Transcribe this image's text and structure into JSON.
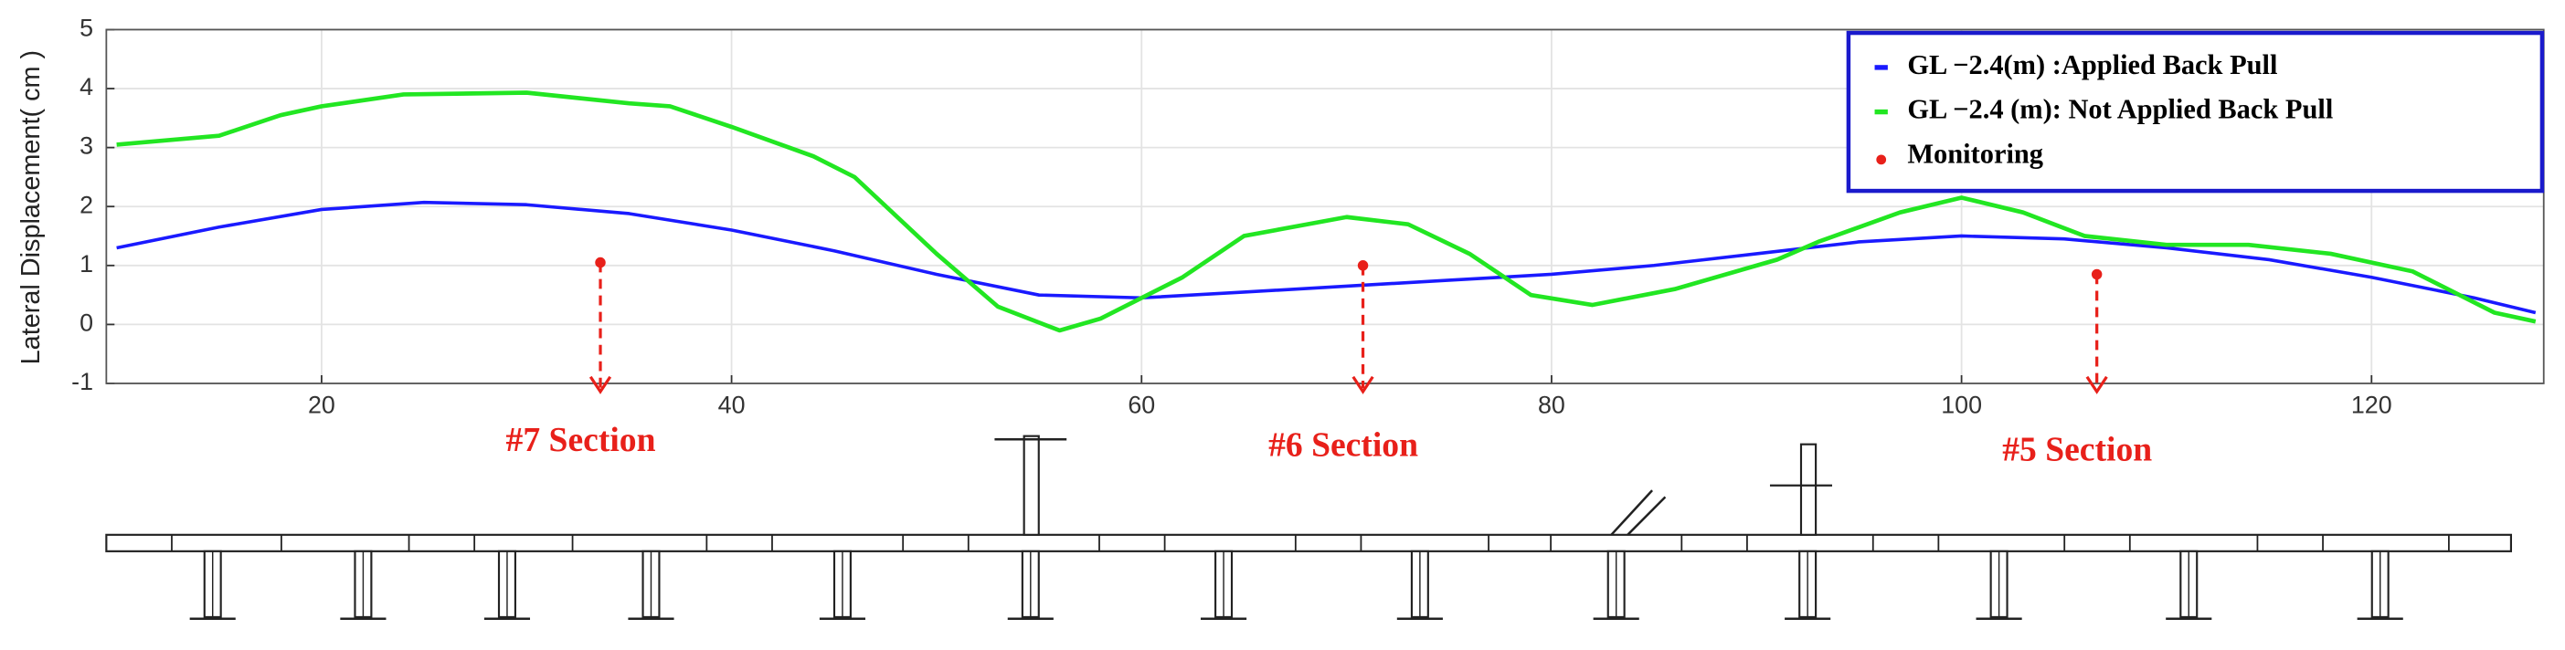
{
  "chart_data": {
    "type": "line",
    "ylabel": "Lateral Displacement( cm )",
    "xlim": [
      9.5,
      128.4
    ],
    "ylim": [
      -1,
      5
    ],
    "xticks": [
      20,
      40,
      60,
      80,
      100,
      120
    ],
    "yticks": [
      -1,
      0,
      1,
      2,
      3,
      4,
      5
    ],
    "grid": true,
    "legend": "upper right",
    "series": [
      {
        "name": "GL −2.4(m) :Applied Back Pull",
        "color": "#1a1aff",
        "x": [
          10,
          15,
          20,
          25,
          30,
          35,
          40,
          45,
          50,
          55,
          60,
          65,
          70,
          75,
          80,
          85,
          90,
          95,
          100,
          105,
          110,
          115,
          120,
          125,
          128
        ],
        "values": [
          1.3,
          1.65,
          1.95,
          2.07,
          2.03,
          1.88,
          1.6,
          1.25,
          0.85,
          0.5,
          0.45,
          0.55,
          0.65,
          0.75,
          0.85,
          1.0,
          1.2,
          1.4,
          1.5,
          1.45,
          1.3,
          1.1,
          0.8,
          0.45,
          0.2
        ]
      },
      {
        "name": "GL −2.4 (m): Not Applied Back Pull",
        "color": "#22e622",
        "x": [
          10,
          15,
          18,
          20,
          24,
          30,
          35,
          37,
          40,
          44,
          46,
          50,
          53,
          56,
          58,
          62,
          65,
          70,
          73,
          76,
          79,
          82,
          86,
          91,
          93,
          97,
          100,
          103,
          106,
          110,
          114,
          118,
          122,
          126,
          128
        ],
        "values": [
          3.05,
          3.2,
          3.55,
          3.7,
          3.9,
          3.93,
          3.75,
          3.7,
          3.35,
          2.85,
          2.5,
          1.2,
          0.3,
          -0.1,
          0.1,
          0.8,
          1.5,
          1.82,
          1.7,
          1.2,
          0.5,
          0.33,
          0.6,
          1.1,
          1.4,
          1.9,
          2.15,
          1.9,
          1.5,
          1.35,
          1.35,
          1.2,
          0.9,
          0.2,
          0.05
        ]
      },
      {
        "name": "Monitoring",
        "color": "#e8201a",
        "mode": "markers",
        "x": [
          33.6,
          70.8,
          106.6
        ],
        "values": [
          1.05,
          1.0,
          0.85
        ]
      }
    ],
    "annotations": [
      "#7 Section",
      "#6 Section",
      "#5 Section"
    ]
  }
}
